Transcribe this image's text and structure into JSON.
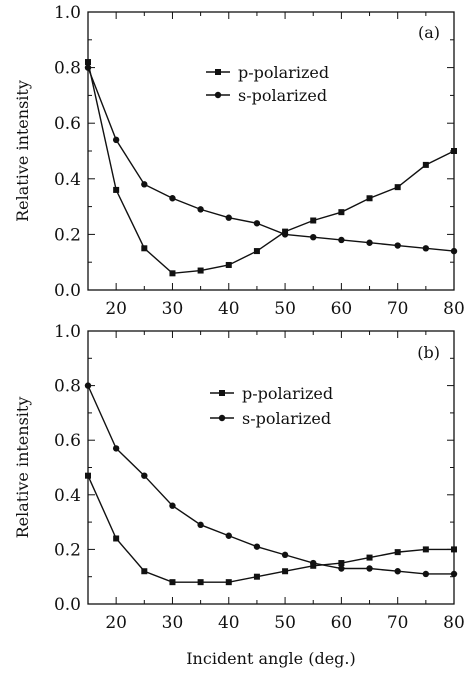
{
  "chart_data": [
    {
      "type": "line",
      "panel_label": "(a)",
      "xlabel": "",
      "ylabel": "Relative intensity",
      "xlim": [
        15,
        80
      ],
      "ylim": [
        0.0,
        1.0
      ],
      "x_ticks": [
        20,
        30,
        40,
        50,
        60,
        70,
        80
      ],
      "x_tick_labels": [
        "20",
        "30",
        "40",
        "50",
        "60",
        "70",
        "80"
      ],
      "y_ticks": [
        0.0,
        0.2,
        0.4,
        0.6,
        0.8,
        1.0
      ],
      "y_tick_labels": [
        "0.0",
        "0.2",
        "0.4",
        "0.6",
        "0.8",
        "1.0"
      ],
      "legend_position": "top-right",
      "grid": false,
      "x": [
        15,
        20,
        25,
        30,
        35,
        40,
        45,
        50,
        55,
        60,
        65,
        70,
        75,
        80
      ],
      "series": [
        {
          "name": "p-polarized",
          "marker": "square",
          "values": [
            0.82,
            0.36,
            0.15,
            0.06,
            0.07,
            0.09,
            0.14,
            0.21,
            0.25,
            0.28,
            0.33,
            0.37,
            0.45,
            0.5
          ]
        },
        {
          "name": "s-polarized",
          "marker": "circle",
          "values": [
            0.8,
            0.54,
            0.38,
            0.33,
            0.29,
            0.26,
            0.24,
            0.2,
            0.19,
            0.18,
            0.17,
            0.16,
            0.15,
            0.14
          ]
        }
      ]
    },
    {
      "type": "line",
      "panel_label": "(b)",
      "xlabel": "Incident angle (deg.)",
      "ylabel": "Relative intensity",
      "xlim": [
        15,
        80
      ],
      "ylim": [
        0.0,
        1.0
      ],
      "x_ticks": [
        20,
        30,
        40,
        50,
        60,
        70,
        80
      ],
      "x_tick_labels": [
        "20",
        "30",
        "40",
        "50",
        "60",
        "70",
        "80"
      ],
      "y_ticks": [
        0.0,
        0.2,
        0.4,
        0.6,
        0.8,
        1.0
      ],
      "y_tick_labels": [
        "0.0",
        "0.2",
        "0.4",
        "0.6",
        "0.8",
        "1.0"
      ],
      "legend_position": "top-right",
      "grid": false,
      "x": [
        15,
        20,
        25,
        30,
        35,
        40,
        45,
        50,
        55,
        60,
        65,
        70,
        75,
        80
      ],
      "series": [
        {
          "name": "p-polarized",
          "marker": "square",
          "values": [
            0.47,
            0.24,
            0.12,
            0.08,
            0.08,
            0.08,
            0.1,
            0.12,
            0.14,
            0.15,
            0.17,
            0.19,
            0.2,
            0.2
          ]
        },
        {
          "name": "s-polarized",
          "marker": "circle",
          "values": [
            0.8,
            0.57,
            0.47,
            0.36,
            0.29,
            0.25,
            0.21,
            0.18,
            0.15,
            0.13,
            0.13,
            0.12,
            0.11,
            0.11
          ]
        }
      ]
    }
  ]
}
